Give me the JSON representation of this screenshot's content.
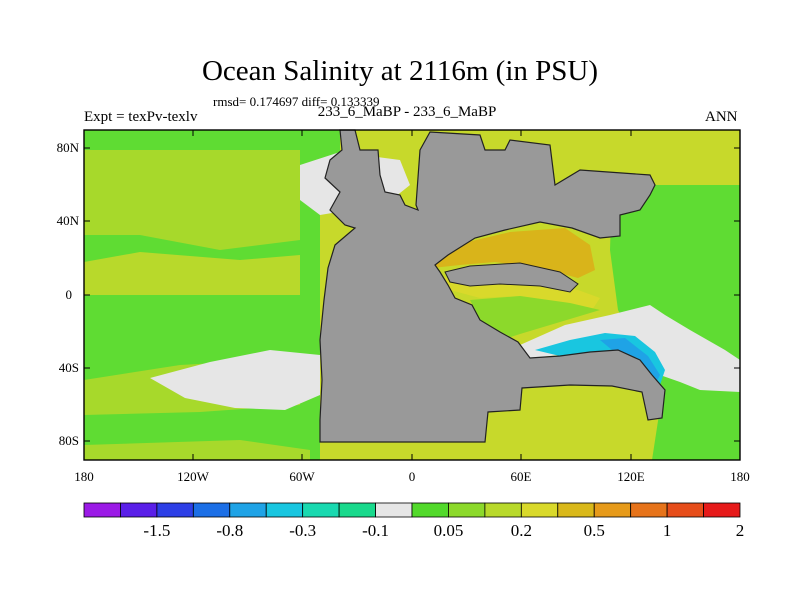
{
  "title": "Ocean Salinity at 2116m (in PSU)",
  "stats": "rmsd= 0.174697 diff= 0.133339",
  "experiment": "Expt = texPv-texlv",
  "center_label": "233_6_MaBP - 233_6_MaBP",
  "season": "ANN",
  "map": {
    "lat_ticks": [
      "80N",
      "40N",
      "0",
      "40S",
      "80S"
    ],
    "lon_ticks": [
      "180",
      "120W",
      "60W",
      "0",
      "60E",
      "120E",
      "180"
    ],
    "land_color": "#999999",
    "ocean_base_color": "#c7d92b"
  },
  "colorbar": {
    "colors": [
      "#9b1ae6",
      "#5a1fe8",
      "#2d3fe6",
      "#1c6fe6",
      "#1fa3e6",
      "#19c6e0",
      "#19d9b0",
      "#19d98c",
      "#e6e6e6",
      "#52d92b",
      "#8cd92b",
      "#b8d92b",
      "#d9d92b",
      "#d9b81a",
      "#e69a1a",
      "#e6731a",
      "#e64d1a",
      "#e61a1a"
    ],
    "labels": [
      "-1.5",
      "-0.8",
      "-0.3",
      "-0.1",
      "0.05",
      "0.2",
      "0.5",
      "1",
      "2"
    ]
  }
}
